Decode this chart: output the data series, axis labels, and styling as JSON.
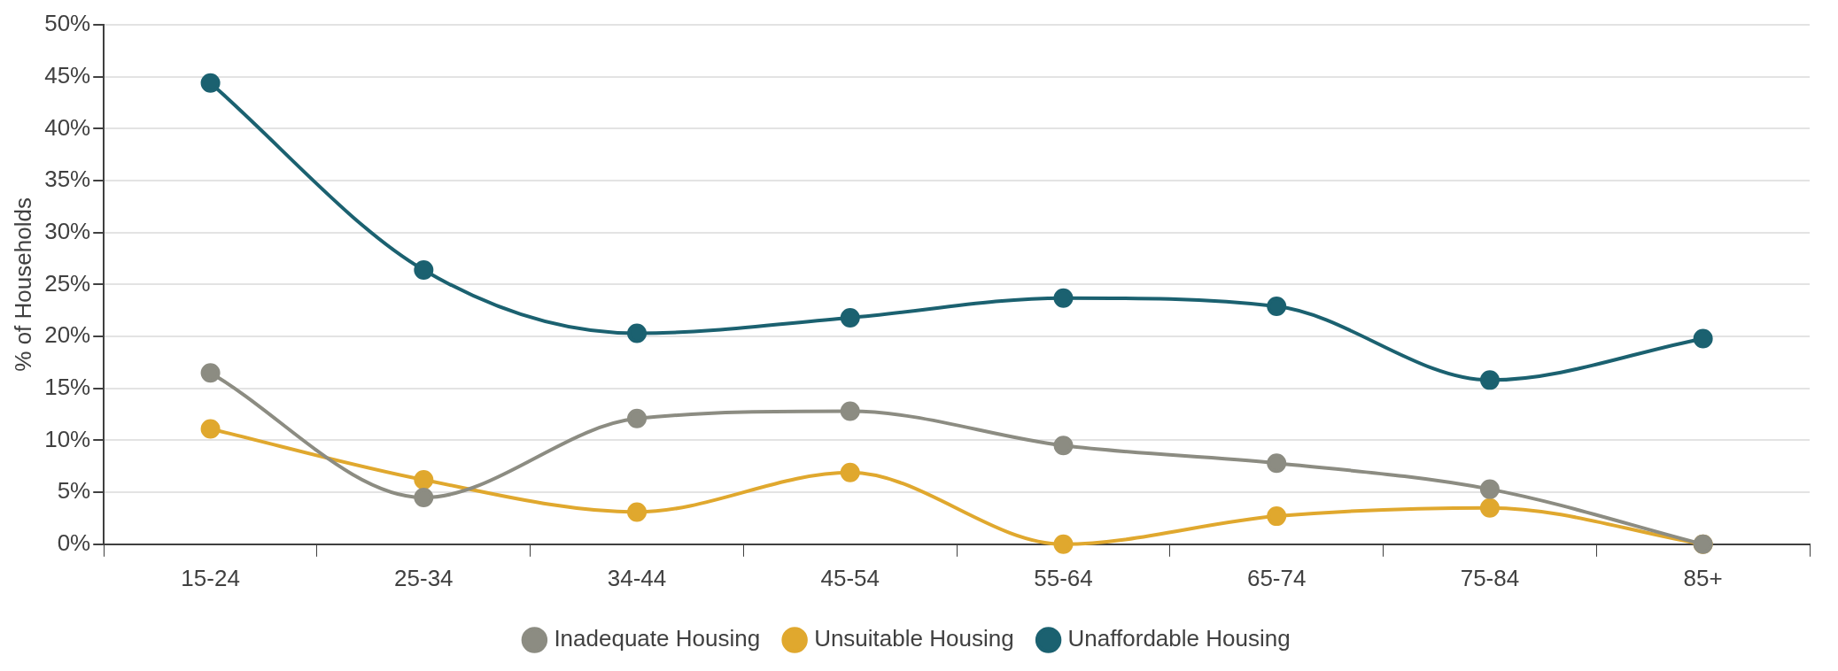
{
  "chart_data": {
    "type": "line",
    "ylabel": "% of Households",
    "categories": [
      "15-24",
      "25-34",
      "34-44",
      "45-54",
      "55-64",
      "65-74",
      "75-84",
      "85+"
    ],
    "series": [
      {
        "name": "Inadequate Housing",
        "color": "#8c8c82",
        "values": [
          16.5,
          4.5,
          12.1,
          12.8,
          9.5,
          7.8,
          5.3,
          0
        ]
      },
      {
        "name": "Unsuitable Housing",
        "color": "#e0a82e",
        "values": [
          11.1,
          6.2,
          3.1,
          6.9,
          0,
          2.7,
          3.5,
          0
        ]
      },
      {
        "name": "Unaffordable Housing",
        "color": "#1b6170",
        "values": [
          44.4,
          26.4,
          20.3,
          21.8,
          23.7,
          22.9,
          15.8,
          19.8
        ]
      }
    ],
    "ylim": [
      0,
      50
    ],
    "yticks": [
      {
        "value": 0,
        "label": "0%"
      },
      {
        "value": 5,
        "label": "5%"
      },
      {
        "value": 10,
        "label": "10%"
      },
      {
        "value": 15,
        "label": "15%"
      },
      {
        "value": 20,
        "label": "20%"
      },
      {
        "value": 25,
        "label": "25%"
      },
      {
        "value": 30,
        "label": "30%"
      },
      {
        "value": 35,
        "label": "35%"
      },
      {
        "value": 40,
        "label": "40%"
      },
      {
        "value": 45,
        "label": "45%"
      },
      {
        "value": 50,
        "label": "50%"
      }
    ],
    "grid": "y",
    "legend": "bottom",
    "marker": "circle",
    "line_style": "solid"
  }
}
